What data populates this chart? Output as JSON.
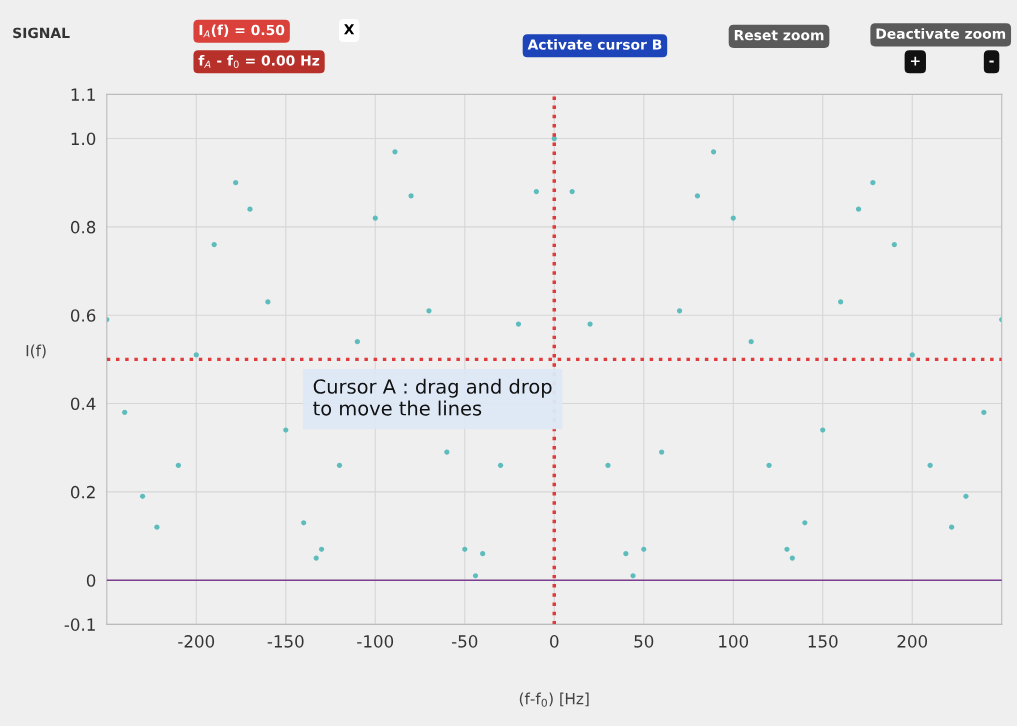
{
  "chart_data": {
    "type": "scatter",
    "title": "SIGNAL",
    "xlabel": "(f-f$_{0}$) [Hz]",
    "ylabel": "I(f)",
    "x": [
      -250,
      -240,
      -230,
      -222,
      -210,
      -200,
      -190,
      -178,
      -170,
      -160,
      -150,
      -140,
      -133,
      -130,
      -120,
      -110,
      -100,
      -89,
      -80,
      -70,
      -60,
      -50,
      -44,
      -40,
      -30,
      -20,
      -10,
      0,
      10,
      20,
      30,
      40,
      44,
      50,
      60,
      70,
      80,
      89,
      100,
      110,
      120,
      130,
      133,
      140,
      150,
      160,
      170,
      178,
      190,
      200,
      210,
      222,
      230,
      240,
      250
    ],
    "series": [
      {
        "color": "#5fbcbc",
        "values": [
          0.59,
          0.38,
          0.19,
          0.12,
          0.26,
          0.51,
          0.76,
          0.9,
          0.84,
          0.63,
          0.34,
          0.13,
          0.05,
          0.07,
          0.26,
          0.54,
          0.82,
          0.97,
          0.87,
          0.61,
          0.29,
          0.07,
          0.01,
          0.06,
          0.26,
          0.58,
          0.88,
          1.0,
          0.88,
          0.58,
          0.26,
          0.06,
          0.01,
          0.07,
          0.29,
          0.61,
          0.87,
          0.97,
          0.82,
          0.54,
          0.26,
          0.07,
          0.05,
          0.13,
          0.34,
          0.63,
          0.84,
          0.9,
          0.76,
          0.51,
          0.26,
          0.12,
          0.19,
          0.38,
          0.59
        ]
      }
    ],
    "xlim": [
      -250,
      250
    ],
    "ylim": [
      -0.1,
      1.1
    ],
    "xticks": [
      -200,
      -150,
      -100,
      -50,
      0,
      50,
      100,
      150,
      200
    ],
    "yticks": [
      -0.1,
      0,
      0.2,
      0.4,
      0.6,
      0.8,
      {
        "value": 1.0,
        "label": "1.0"
      },
      1.1
    ],
    "grid": true,
    "marker": "circle",
    "legend": false,
    "ref_lines": [
      {
        "axis": "x",
        "value": 0,
        "color": "#e03a3a",
        "line_style": "dotted"
      },
      {
        "axis": "y",
        "value": 0.5,
        "color": "#e03a3a",
        "line_style": "dotted"
      },
      {
        "axis": "y",
        "value": 0,
        "color": "#7b3f8f",
        "line_style": "solid"
      }
    ],
    "annotations": [
      "I$_{A}$(f) = 0.50",
      "f$_{A}$ - f$_{0}$ = 0.00 Hz",
      "X",
      "Activate cursor B",
      "Reset zoom",
      "Deactivate zoom",
      "+",
      "-",
      "Cursor A : drag and drop\nto move the lines"
    ]
  }
}
